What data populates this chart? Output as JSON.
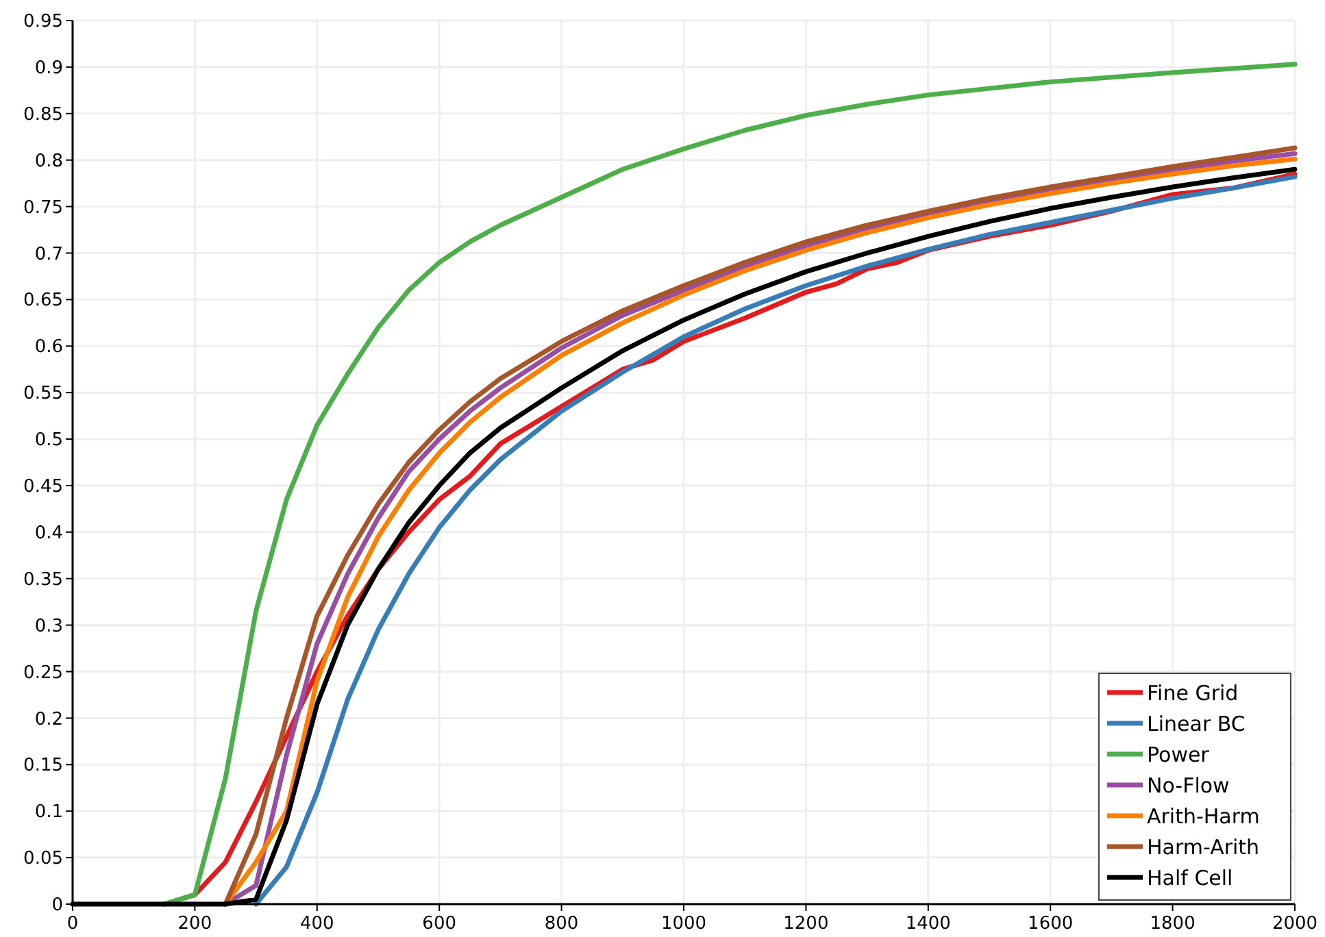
{
  "chart_data": {
    "type": "line",
    "xlim": [
      0,
      2000
    ],
    "ylim": [
      0,
      0.95
    ],
    "xticks": [
      0,
      200,
      400,
      600,
      800,
      1000,
      1200,
      1400,
      1600,
      1800,
      2000
    ],
    "yticks": [
      0,
      0.05,
      0.1,
      0.15,
      0.2,
      0.25,
      0.3,
      0.35,
      0.4,
      0.45,
      0.5,
      0.55,
      0.6,
      0.65,
      0.7,
      0.75,
      0.8,
      0.85,
      0.9,
      0.95
    ],
    "grid": true,
    "legend": "bottom right",
    "marker": "none",
    "line_style": "solid",
    "series": [
      {
        "name": "Fine Grid",
        "color": "#e41a1c",
        "x": [
          150,
          200,
          250,
          300,
          350,
          400,
          450,
          500,
          550,
          600,
          650,
          700,
          750,
          800,
          900,
          950,
          1000,
          1100,
          1200,
          1250,
          1300,
          1350,
          1400,
          1500,
          1600,
          1700,
          1800,
          1900,
          2000
        ],
        "values": [
          0,
          0.01,
          0.045,
          0.11,
          0.18,
          0.25,
          0.31,
          0.36,
          0.4,
          0.435,
          0.46,
          0.495,
          0.515,
          0.535,
          0.575,
          0.585,
          0.605,
          0.63,
          0.658,
          0.667,
          0.683,
          0.69,
          0.703,
          0.718,
          0.73,
          0.745,
          0.763,
          0.77,
          0.785
        ]
      },
      {
        "name": "Linear BC",
        "color": "#377eb8",
        "x": [
          300,
          350,
          400,
          450,
          500,
          550,
          600,
          650,
          700,
          800,
          900,
          1000,
          1100,
          1200,
          1300,
          1400,
          1500,
          1600,
          1700,
          1800,
          1900,
          2000
        ],
        "values": [
          0,
          0.04,
          0.12,
          0.22,
          0.295,
          0.355,
          0.405,
          0.445,
          0.478,
          0.53,
          0.572,
          0.61,
          0.64,
          0.665,
          0.686,
          0.704,
          0.72,
          0.733,
          0.746,
          0.759,
          0.77,
          0.782
        ]
      },
      {
        "name": "Power",
        "color": "#4daf4a",
        "x": [
          150,
          200,
          250,
          300,
          350,
          400,
          450,
          500,
          550,
          600,
          650,
          700,
          800,
          900,
          1000,
          1100,
          1200,
          1300,
          1400,
          1500,
          1600,
          1800,
          2000
        ],
        "values": [
          0,
          0.01,
          0.135,
          0.315,
          0.435,
          0.515,
          0.57,
          0.62,
          0.66,
          0.69,
          0.712,
          0.73,
          0.76,
          0.79,
          0.812,
          0.832,
          0.848,
          0.86,
          0.87,
          0.877,
          0.884,
          0.894,
          0.903
        ]
      },
      {
        "name": "No-Flow",
        "color": "#984ea3",
        "x": [
          250,
          300,
          350,
          400,
          450,
          500,
          550,
          600,
          650,
          700,
          800,
          900,
          1000,
          1100,
          1200,
          1300,
          1400,
          1500,
          1600,
          1700,
          1800,
          1900,
          2000
        ],
        "values": [
          0,
          0.02,
          0.16,
          0.28,
          0.355,
          0.415,
          0.465,
          0.5,
          0.53,
          0.555,
          0.598,
          0.633,
          0.66,
          0.686,
          0.708,
          0.726,
          0.742,
          0.756,
          0.768,
          0.779,
          0.789,
          0.799,
          0.807
        ]
      },
      {
        "name": "Arith-Harm",
        "color": "#ff7f00",
        "x": [
          250,
          300,
          350,
          400,
          450,
          500,
          550,
          600,
          650,
          700,
          800,
          900,
          1000,
          1100,
          1200,
          1300,
          1400,
          1500,
          1600,
          1700,
          1800,
          1900,
          2000
        ],
        "values": [
          0,
          0.045,
          0.1,
          0.24,
          0.33,
          0.395,
          0.445,
          0.485,
          0.518,
          0.545,
          0.59,
          0.625,
          0.655,
          0.681,
          0.703,
          0.722,
          0.738,
          0.752,
          0.764,
          0.775,
          0.785,
          0.794,
          0.801
        ]
      },
      {
        "name": "Harm-Arith",
        "color": "#a65628",
        "x": [
          250,
          300,
          350,
          400,
          450,
          500,
          550,
          600,
          650,
          700,
          800,
          900,
          1000,
          1100,
          1200,
          1300,
          1400,
          1500,
          1600,
          1700,
          1800,
          1900,
          2000
        ],
        "values": [
          0,
          0.075,
          0.2,
          0.31,
          0.375,
          0.43,
          0.475,
          0.51,
          0.54,
          0.565,
          0.605,
          0.638,
          0.665,
          0.69,
          0.712,
          0.73,
          0.745,
          0.759,
          0.771,
          0.782,
          0.793,
          0.803,
          0.813
        ]
      },
      {
        "name": "Half Cell",
        "color": "#000000",
        "x": [
          0,
          50,
          100,
          150,
          200,
          250,
          300,
          350,
          400,
          450,
          500,
          550,
          600,
          650,
          700,
          800,
          900,
          1000,
          1100,
          1200,
          1300,
          1400,
          1500,
          1600,
          1700,
          1800,
          1900,
          2000
        ],
        "values": [
          0,
          0,
          0,
          0,
          0,
          0,
          0.005,
          0.09,
          0.215,
          0.3,
          0.36,
          0.41,
          0.45,
          0.485,
          0.512,
          0.555,
          0.595,
          0.628,
          0.656,
          0.68,
          0.7,
          0.718,
          0.734,
          0.748,
          0.76,
          0.771,
          0.781,
          0.79
        ]
      }
    ]
  }
}
